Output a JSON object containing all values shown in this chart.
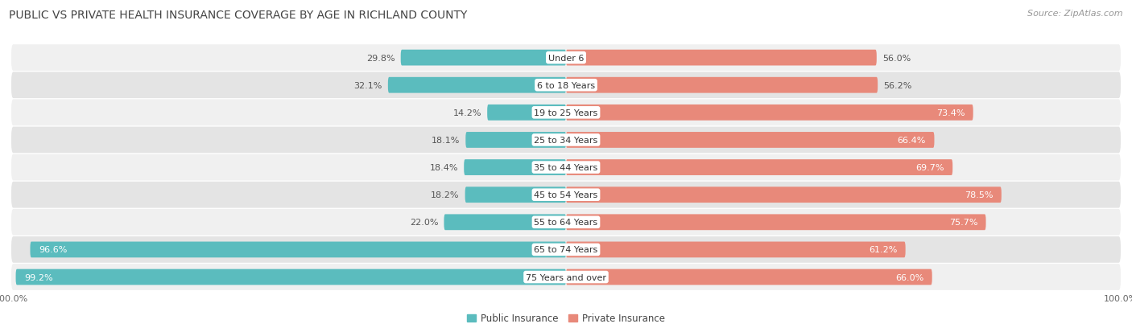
{
  "title": "PUBLIC VS PRIVATE HEALTH INSURANCE COVERAGE BY AGE IN RICHLAND COUNTY",
  "source": "Source: ZipAtlas.com",
  "categories": [
    "Under 6",
    "6 to 18 Years",
    "19 to 25 Years",
    "25 to 34 Years",
    "35 to 44 Years",
    "45 to 54 Years",
    "55 to 64 Years",
    "65 to 74 Years",
    "75 Years and over"
  ],
  "public_values": [
    29.8,
    32.1,
    14.2,
    18.1,
    18.4,
    18.2,
    22.0,
    96.6,
    99.2
  ],
  "private_values": [
    56.0,
    56.2,
    73.4,
    66.4,
    69.7,
    78.5,
    75.7,
    61.2,
    66.0
  ],
  "public_color": "#5bbcbe",
  "private_color": "#e8897a",
  "row_color_even": "#f0f0f0",
  "row_color_odd": "#e4e4e4",
  "background_color": "#ffffff",
  "bar_bg_color": "#dcdcdc",
  "max_value": 100.0,
  "title_fontsize": 10,
  "label_fontsize": 8,
  "value_fontsize": 8,
  "legend_fontsize": 8.5,
  "source_fontsize": 8
}
